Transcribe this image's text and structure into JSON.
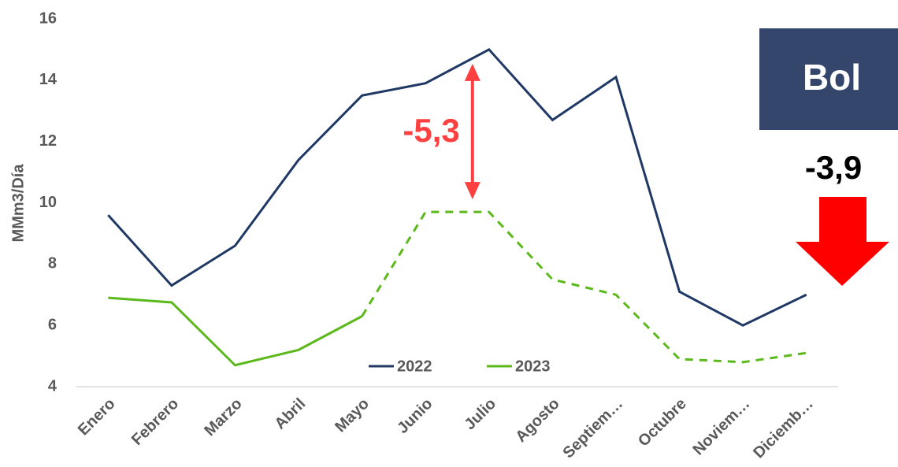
{
  "chart_data": {
    "type": "line",
    "y_label": "MMm3/Día",
    "categories": [
      "Enero",
      "Febrero",
      "Marzo",
      "Abril",
      "Mayo",
      "Junio",
      "Julio",
      "Agosto",
      "Septiem…",
      "Octubre",
      "Noviem…",
      "Diciemb…"
    ],
    "series": [
      {
        "name": "2022",
        "color": "#1f3864",
        "values": [
          9.6,
          7.3,
          8.6,
          11.4,
          13.5,
          13.9,
          15.0,
          12.7,
          14.1,
          7.1,
          6.0,
          7.0
        ]
      },
      {
        "name": "2023",
        "color": "#5cb91c",
        "dashed_from": 4,
        "values": [
          6.9,
          6.75,
          4.7,
          5.2,
          6.3,
          9.7,
          9.7,
          7.5,
          7.0,
          4.9,
          4.8,
          5.1
        ]
      }
    ],
    "ylim": [
      4,
      16
    ],
    "yticks": [
      4,
      6,
      8,
      10,
      12,
      14,
      16
    ],
    "grid": false,
    "annotations": {
      "difference": "-5,3",
      "badge": "Bol",
      "change": "-3,9"
    }
  }
}
